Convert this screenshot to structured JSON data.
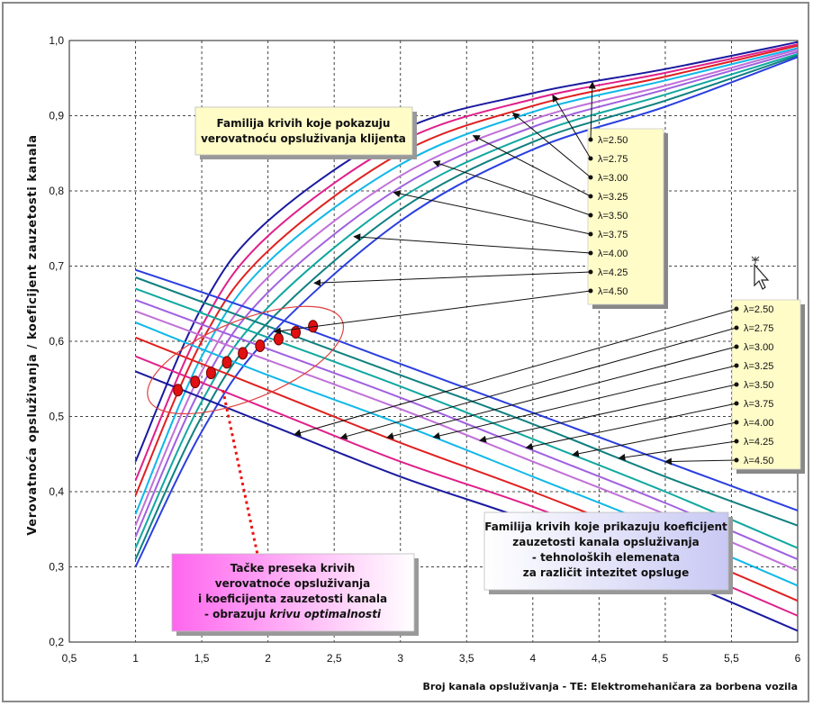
{
  "chart_data": {
    "type": "line",
    "ylabel": "Verovatnoća opsluživanja / koeficijent zauzetosti kanala",
    "xlabel": "Broj kanala opsluživanja - TE: Elektromehaničara za borbena vozila",
    "xlim": [
      0.5,
      6
    ],
    "ylim": [
      0.2,
      1.0
    ],
    "x_ticks": [
      "0,5",
      "1",
      "1,5",
      "2",
      "2,5",
      "3",
      "3,5",
      "4",
      "4,5",
      "5",
      "5,5",
      "6"
    ],
    "y_ticks": [
      "0,2",
      "0,3",
      "0,4",
      "0,5",
      "0,6",
      "0,7",
      "0,8",
      "0,9",
      "1,0"
    ],
    "grid": true,
    "legend_labels": [
      "λ=2.50",
      "λ=2.75",
      "λ=3.00",
      "λ=3.25",
      "λ=3.50",
      "λ=3.75",
      "λ=4.00",
      "λ=4.25",
      "λ=4.50"
    ],
    "colors": [
      "#1a1aa0",
      "#e0208a",
      "#e02020",
      "#10b8e8",
      "#c070d8",
      "#a060e0",
      "#10a8a0",
      "#108080",
      "#2b3fe0"
    ],
    "service_probability_series": [
      {
        "name": "λ=2.50",
        "values": [
          [
            1,
            0.44
          ],
          [
            1.5,
            0.645
          ],
          [
            2,
            0.76
          ],
          [
            3,
            0.88
          ],
          [
            4,
            0.93
          ],
          [
            5,
            0.962
          ],
          [
            6,
            0.998
          ]
        ]
      },
      {
        "name": "λ=2.75",
        "values": [
          [
            1,
            0.415
          ],
          [
            1.5,
            0.62
          ],
          [
            2,
            0.74
          ],
          [
            3,
            0.865
          ],
          [
            4,
            0.922
          ],
          [
            5,
            0.957
          ],
          [
            6,
            0.995
          ]
        ]
      },
      {
        "name": "λ=3.00",
        "values": [
          [
            1,
            0.395
          ],
          [
            1.5,
            0.6
          ],
          [
            2,
            0.72
          ],
          [
            3,
            0.85
          ],
          [
            4,
            0.913
          ],
          [
            5,
            0.952
          ],
          [
            6,
            0.993
          ]
        ]
      },
      {
        "name": "λ=3.25",
        "values": [
          [
            1,
            0.37
          ],
          [
            1.5,
            0.58
          ],
          [
            2,
            0.705
          ],
          [
            3,
            0.835
          ],
          [
            4,
            0.905
          ],
          [
            5,
            0.947
          ],
          [
            6,
            0.99
          ]
        ]
      },
      {
        "name": "λ=3.50",
        "values": [
          [
            1,
            0.355
          ],
          [
            1.5,
            0.56
          ],
          [
            2,
            0.685
          ],
          [
            3,
            0.82
          ],
          [
            4,
            0.895
          ],
          [
            5,
            0.94
          ],
          [
            6,
            0.988
          ]
        ]
      },
      {
        "name": "λ=3.75",
        "values": [
          [
            1,
            0.34
          ],
          [
            1.5,
            0.54
          ],
          [
            2,
            0.665
          ],
          [
            3,
            0.805
          ],
          [
            4,
            0.885
          ],
          [
            5,
            0.935
          ],
          [
            6,
            0.985
          ]
        ]
      },
      {
        "name": "λ=4.00",
        "values": [
          [
            1,
            0.325
          ],
          [
            1.5,
            0.52
          ],
          [
            2,
            0.645
          ],
          [
            3,
            0.79
          ],
          [
            4,
            0.875
          ],
          [
            5,
            0.928
          ],
          [
            6,
            0.982
          ]
        ]
      },
      {
        "name": "λ=4.25",
        "values": [
          [
            1,
            0.31
          ],
          [
            1.5,
            0.5
          ],
          [
            2,
            0.625
          ],
          [
            3,
            0.775
          ],
          [
            4,
            0.865
          ],
          [
            5,
            0.92
          ],
          [
            6,
            0.98
          ]
        ]
      },
      {
        "name": "λ=4.50",
        "values": [
          [
            1,
            0.3
          ],
          [
            1.5,
            0.48
          ],
          [
            2,
            0.605
          ],
          [
            3,
            0.76
          ],
          [
            4,
            0.855
          ],
          [
            5,
            0.912
          ],
          [
            6,
            0.978
          ]
        ]
      }
    ],
    "occupancy_coefficient_series": [
      {
        "name": "λ=2.50",
        "values": [
          [
            1,
            0.56
          ],
          [
            2,
            0.49
          ],
          [
            3,
            0.42
          ],
          [
            4,
            0.36
          ],
          [
            5,
            0.29
          ],
          [
            6,
            0.215
          ]
        ]
      },
      {
        "name": "λ=2.75",
        "values": [
          [
            1,
            0.58
          ],
          [
            2,
            0.51
          ],
          [
            3,
            0.44
          ],
          [
            4,
            0.38
          ],
          [
            5,
            0.31
          ],
          [
            6,
            0.235
          ]
        ]
      },
      {
        "name": "λ=3.00",
        "values": [
          [
            1,
            0.605
          ],
          [
            2,
            0.535
          ],
          [
            3,
            0.465
          ],
          [
            4,
            0.4
          ],
          [
            5,
            0.33
          ],
          [
            6,
            0.255
          ]
        ]
      },
      {
        "name": "λ=3.25",
        "values": [
          [
            1,
            0.625
          ],
          [
            2,
            0.555
          ],
          [
            3,
            0.49
          ],
          [
            4,
            0.42
          ],
          [
            5,
            0.35
          ],
          [
            6,
            0.275
          ]
        ]
      },
      {
        "name": "λ=3.50",
        "values": [
          [
            1,
            0.64
          ],
          [
            2,
            0.575
          ],
          [
            3,
            0.51
          ],
          [
            4,
            0.44
          ],
          [
            5,
            0.37
          ],
          [
            6,
            0.295
          ]
        ]
      },
      {
        "name": "λ=3.75",
        "values": [
          [
            1,
            0.655
          ],
          [
            2,
            0.59
          ],
          [
            3,
            0.525
          ],
          [
            4,
            0.455
          ],
          [
            5,
            0.385
          ],
          [
            6,
            0.31
          ]
        ]
      },
      {
        "name": "λ=4.00",
        "values": [
          [
            1,
            0.67
          ],
          [
            2,
            0.605
          ],
          [
            3,
            0.54
          ],
          [
            4,
            0.47
          ],
          [
            5,
            0.4
          ],
          [
            6,
            0.325
          ]
        ]
      },
      {
        "name": "λ=4.25",
        "values": [
          [
            1,
            0.685
          ],
          [
            2,
            0.62
          ],
          [
            3,
            0.555
          ],
          [
            4,
            0.49
          ],
          [
            5,
            0.42
          ],
          [
            6,
            0.355
          ]
        ]
      },
      {
        "name": "λ=4.50",
        "values": [
          [
            1,
            0.695
          ],
          [
            2,
            0.635
          ],
          [
            3,
            0.57
          ],
          [
            4,
            0.505
          ],
          [
            5,
            0.44
          ],
          [
            6,
            0.375
          ]
        ]
      }
    ],
    "intersection_points": [
      [
        1.32,
        0.535
      ],
      [
        1.45,
        0.546
      ],
      [
        1.57,
        0.558
      ],
      [
        1.69,
        0.572
      ],
      [
        1.81,
        0.584
      ],
      [
        1.94,
        0.594
      ],
      [
        2.08,
        0.603
      ],
      [
        2.21,
        0.612
      ],
      [
        2.34,
        0.62
      ]
    ],
    "legend_placement": "right",
    "notes": {
      "probability_family": [
        "Familija krivih koje pokazuju",
        "verovatnoću opsluživanja klijenta"
      ],
      "coefficient_family": [
        "Familija krivih koje prikazuju koeficijent",
        "zauzetosti kanala opsluživanja",
        "- tehnoloških elemenata",
        "za različit intezitet opsluge"
      ],
      "intersection_note_lines": [
        "Tačke preseka krivih",
        "verovatnoće opsluživanja",
        "i koeficijenta zauzetosti kanala"
      ],
      "intersection_note_last_prefix": "- obrazuju ",
      "intersection_note_last_italic": "krivu optimalnosti"
    }
  }
}
